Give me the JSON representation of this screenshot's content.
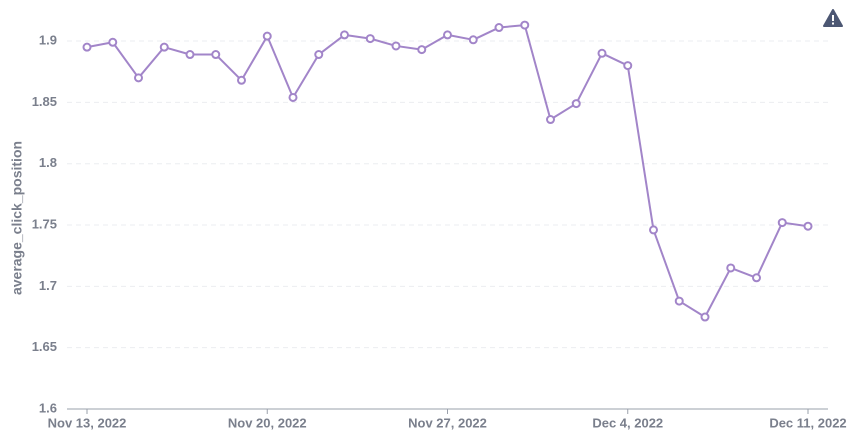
{
  "chart_data": {
    "type": "line",
    "y_label": "average_click_position",
    "x": [
      "2022-11-13",
      "2022-11-14",
      "2022-11-15",
      "2022-11-16",
      "2022-11-17",
      "2022-11-18",
      "2022-11-19",
      "2022-11-20",
      "2022-11-21",
      "2022-11-22",
      "2022-11-23",
      "2022-11-24",
      "2022-11-25",
      "2022-11-26",
      "2022-11-27",
      "2022-11-28",
      "2022-11-29",
      "2022-11-30",
      "2022-12-01",
      "2022-12-02",
      "2022-12-03",
      "2022-12-04",
      "2022-12-05",
      "2022-12-06",
      "2022-12-07",
      "2022-12-08",
      "2022-12-09",
      "2022-12-10",
      "2022-12-11"
    ],
    "series": [
      {
        "name": "average_click_position",
        "color": "#a285c9",
        "values": [
          1.895,
          1.899,
          1.87,
          1.895,
          1.889,
          1.889,
          1.868,
          1.904,
          1.854,
          1.889,
          1.905,
          1.902,
          1.896,
          1.893,
          1.905,
          1.901,
          1.911,
          1.913,
          1.836,
          1.849,
          1.89,
          1.88,
          1.746,
          1.688,
          1.675,
          1.715,
          1.707,
          1.752,
          1.749
        ]
      }
    ],
    "xticks": [
      {
        "value": "2022-11-13",
        "label": "Nov 13, 2022"
      },
      {
        "value": "2022-11-20",
        "label": "Nov 20, 2022"
      },
      {
        "value": "2022-11-27",
        "label": "Nov 27, 2022"
      },
      {
        "value": "2022-12-04",
        "label": "Dec 4, 2022"
      },
      {
        "value": "2022-12-11",
        "label": "Dec 11, 2022"
      }
    ],
    "ylim": [
      1.6,
      1.92
    ],
    "yticks": [
      1.6,
      1.65,
      1.7,
      1.75,
      1.8,
      1.85,
      1.9
    ],
    "grid": true
  }
}
